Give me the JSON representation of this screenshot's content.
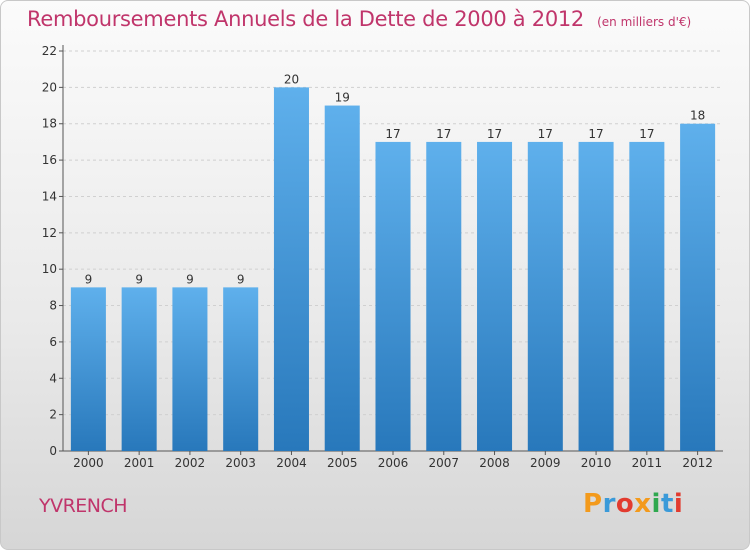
{
  "header": {
    "title": "Remboursements Annuels de la Dette de 2000 à 2012",
    "subtitle": "(en milliers d'€)"
  },
  "footer": {
    "commune": "YVRENCH",
    "logo_letters": [
      "P",
      "r",
      "o",
      "x",
      "i",
      "t",
      "i"
    ]
  },
  "colors": {
    "bar_top": "#5fb0ec",
    "bar_bottom": "#2878bb",
    "title": "#c0356b",
    "grid": "#d0d0d0"
  },
  "chart_data": {
    "type": "bar",
    "title": "Remboursements Annuels de la Dette de 2000 à 2012",
    "subtitle": "(en milliers d'€)",
    "xlabel": "",
    "ylabel": "",
    "categories": [
      "2000",
      "2001",
      "2002",
      "2003",
      "2004",
      "2005",
      "2006",
      "2007",
      "2008",
      "2009",
      "2010",
      "2011",
      "2012"
    ],
    "values": [
      9,
      9,
      9,
      9,
      20,
      19,
      17,
      17,
      17,
      17,
      17,
      17,
      18
    ],
    "ylim": [
      0,
      22
    ],
    "yticks": [
      0,
      2,
      4,
      6,
      8,
      10,
      12,
      14,
      16,
      18,
      20,
      22
    ],
    "grid": "horizontal dashed",
    "legend": "none"
  }
}
